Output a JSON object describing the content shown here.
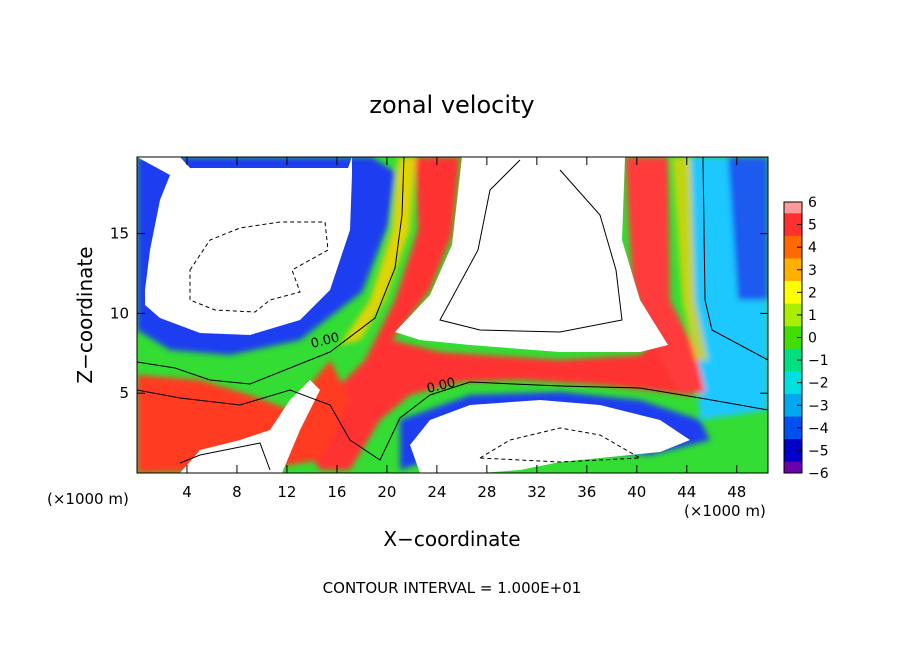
{
  "chart_data": {
    "type": "heatmap",
    "title": "zonal velocity",
    "xlabel": "X−coordinate",
    "ylabel": "Z−coordinate",
    "x_unit_left": "(×1000 m)",
    "x_unit_right": "(×1000 m)",
    "xlim": [
      0,
      50.5
    ],
    "ylim": [
      0,
      19.8
    ],
    "x_ticks": [
      4,
      8,
      12,
      16,
      20,
      24,
      28,
      32,
      36,
      40,
      44,
      48
    ],
    "y_ticks": [
      5,
      10,
      15
    ],
    "colorbar": {
      "levels": [
        6,
        5,
        4,
        3,
        2,
        1,
        0,
        -1,
        -2,
        -3,
        -4,
        -5,
        -6
      ],
      "labels": [
        "6",
        "5",
        "4",
        "3",
        "2",
        "1",
        "0",
        "−1",
        "−2",
        "−3",
        "−4",
        "−5",
        "−6"
      ],
      "colors": [
        "#ff9a9a",
        "#ff3030",
        "#ff6a00",
        "#ffb000",
        "#ffff00",
        "#a8f000",
        "#44dd00",
        "#00e080",
        "#00e0e0",
        "#00a8f0",
        "#0050f0",
        "#0000c8",
        "#6a00a8"
      ]
    },
    "contour_labels": [
      "0.00",
      "0.00"
    ],
    "footer": "CONTOUR INTERVAL = 1.000E+01"
  }
}
